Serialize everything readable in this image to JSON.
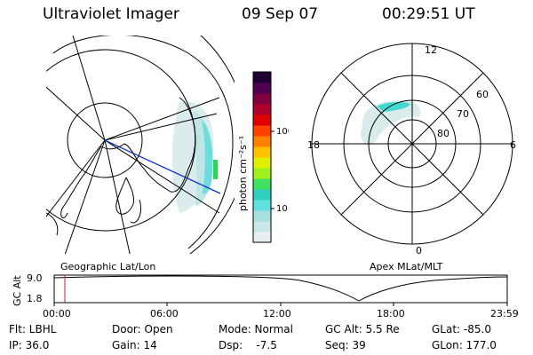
{
  "header": {
    "title": "Ultraviolet Imager",
    "date": "09 Sep 07",
    "time": "00:29:51 UT"
  },
  "colorbar": {
    "unit_label": "photon cm⁻²s⁻¹",
    "tick_100": "100",
    "tick_10": "10",
    "colors": [
      "#e6f0f0",
      "#c8e8e8",
      "#a8e0e0",
      "#60e0e0",
      "#30d0c0",
      "#40e060",
      "#a0f020",
      "#e0f000",
      "#ffc000",
      "#ff8000",
      "#ff4000",
      "#e00000",
      "#b00030",
      "#800040",
      "#500050",
      "#200030"
    ]
  },
  "left_map": {
    "label": "Geographic Lat/Lon"
  },
  "right_map": {
    "label": "Apex MLat/MLT",
    "mlt_12": "12",
    "mlt_18": "18",
    "mlt_6": "6",
    "mlt_0": "0",
    "lat_60": "60",
    "lat_70": "70",
    "lat_80": "80"
  },
  "altitude_plot": {
    "ylabel": "GC Alt",
    "y_top": "9.0",
    "y_bottom": "1.8",
    "x_ticks": [
      "00:00",
      "06:00",
      "12:00",
      "18:00",
      "23:59"
    ]
  },
  "status": {
    "flt": "Flt: LBHL",
    "door": "Door: Open",
    "mode": "Mode: Normal",
    "gc_alt": "GC Alt: 5.5 Re",
    "glat": "GLat: -85.0",
    "ip": "IP: 36.0",
    "gain": "Gain: 14",
    "dsp": "Dsp:    -7.5",
    "seq": "Seq: 39",
    "glon": "GLon: 177.0"
  }
}
